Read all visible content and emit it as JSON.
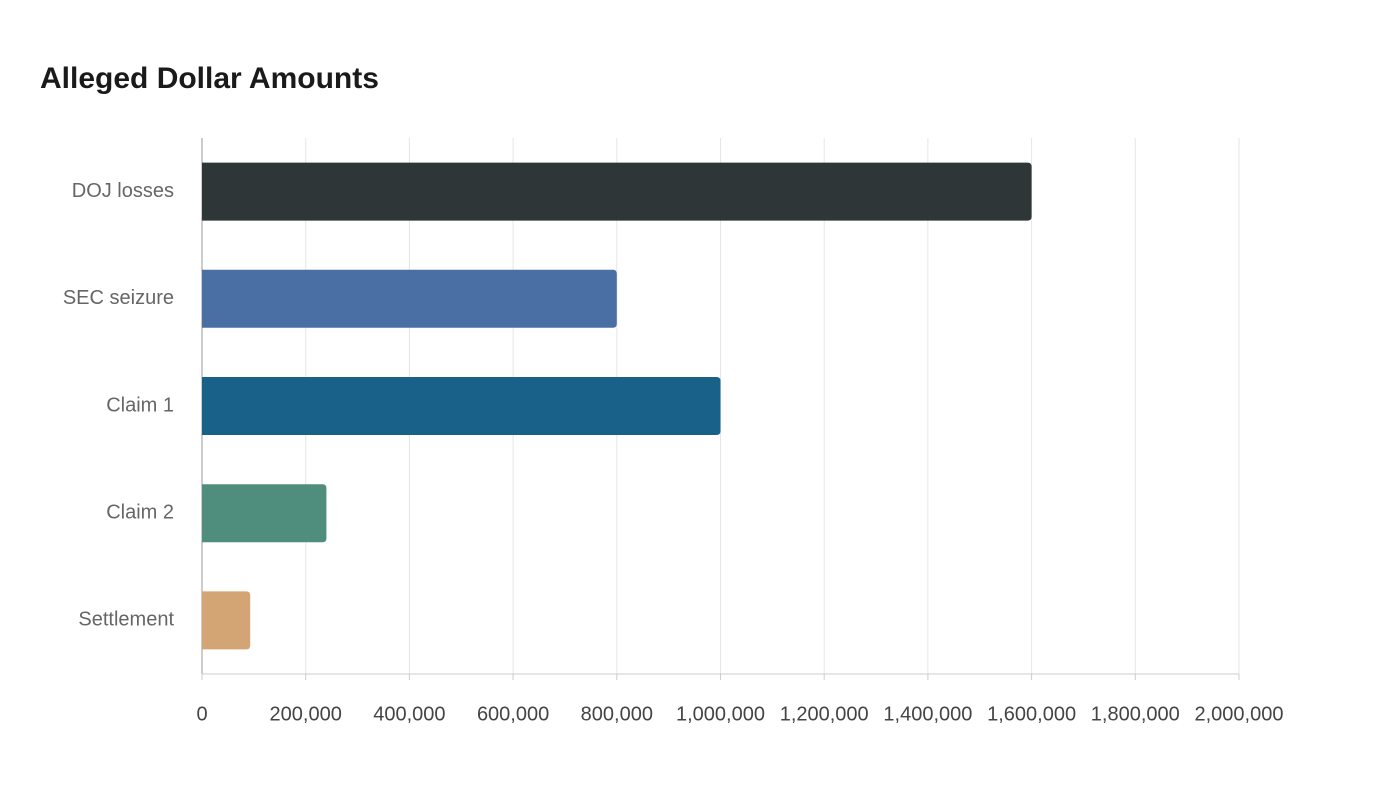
{
  "chart_data": {
    "type": "bar",
    "orientation": "horizontal",
    "title": "Alleged Dollar Amounts",
    "categories": [
      "DOJ losses",
      "SEC seizure",
      "Claim 1",
      "Claim 2",
      "Settlement"
    ],
    "values": [
      1600000,
      800000,
      1000000,
      240000,
      93000
    ],
    "colors": [
      "#2e3638",
      "#4a6fa5",
      "#1a6189",
      "#4f8e7c",
      "#d4a574"
    ],
    "xlim": [
      0,
      2000000
    ],
    "xticks": [
      0,
      {
        "value": 200000,
        "label": "200,000"
      },
      {
        "value": 400000,
        "label": "400,000"
      },
      {
        "value": 600000,
        "label": "600,000"
      },
      {
        "value": 800000,
        "label": "800,000"
      },
      {
        "value": 1000000,
        "label": "1,000,000"
      },
      {
        "value": 1200000,
        "label": "1,200,000"
      },
      {
        "value": 1400000,
        "label": "1,400,000"
      },
      {
        "value": 1600000,
        "label": "1,600,000"
      },
      {
        "value": 1800000,
        "label": "1,800,000"
      },
      {
        "value": 2000000,
        "label": "2,000,000"
      }
    ],
    "grid": true
  }
}
